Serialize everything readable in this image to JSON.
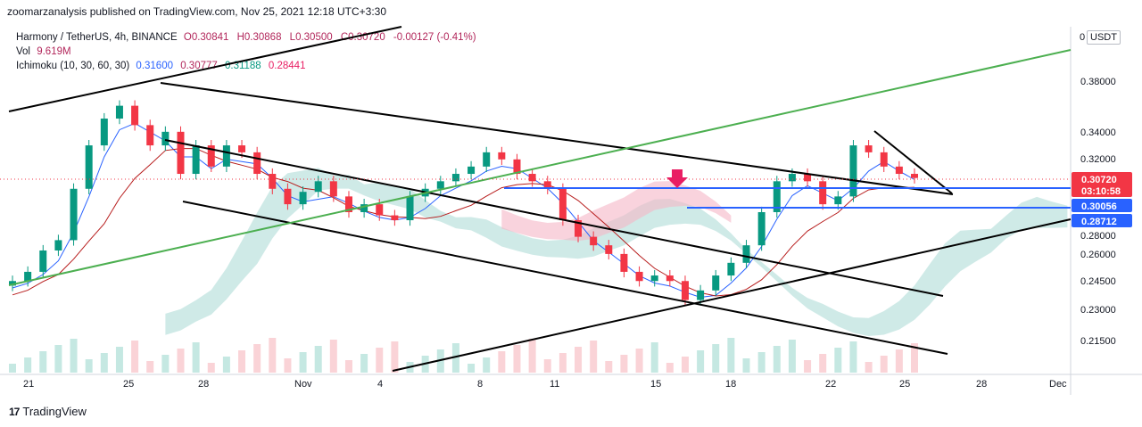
{
  "header": {
    "published": "zoomarzanalysis published on TradingView.com, Nov 25, 2021 12:18 UTC+3:30"
  },
  "legend": {
    "symbol": "Harmony / TetherUS, 4h, BINANCE",
    "o": "O0.30841",
    "h": "H0.30868",
    "l": "L0.30500",
    "c": "C0.30720",
    "change": "-0.00127 (-0.41%)",
    "vol_label": "Vol",
    "vol_value": "9.619M",
    "ichimoku_label": "Ichimoku (10, 30, 60, 30)",
    "ichi_conversion": "0.31600",
    "ichi_base": "0.30777",
    "ichi_span_a": "0.31188",
    "ichi_span_b": "0.28441"
  },
  "currency_button": "USDT",
  "footer": {
    "logo_mark": "17",
    "brand": "TradingView"
  },
  "colors": {
    "up": "#089981",
    "down": "#f23645",
    "conversion": "#2962ff",
    "base": "#b71c1c",
    "cloud_bull": "#a7d9d3",
    "cloud_bear": "#f5b5c7",
    "trend_green": "#4caf50",
    "hline": "#2962ff",
    "arrow": "#e91e63",
    "axis_text": "#131722"
  },
  "chart_data": {
    "type": "candlestick",
    "title": "Harmony / TetherUS, 4h, BINANCE",
    "y_axis_ticks": [
      "0.38000",
      "0.34000",
      "0.32000",
      "0.28000",
      "0.26000",
      "0.24500",
      "0.23000",
      "0.21500"
    ],
    "x_axis_ticks": [
      "21",
      "25",
      "28",
      "Nov",
      "4",
      "8",
      "11",
      "15",
      "18",
      "22",
      "25",
      "28",
      "Dec"
    ],
    "ylim": [
      0.205,
      0.41
    ],
    "y_scale": "log",
    "grid": false,
    "price_tags": [
      {
        "label": "0.30720",
        "sub": "03:10:58",
        "color": "#f23645"
      },
      {
        "label": "0.30056",
        "color": "#2962ff"
      },
      {
        "label": "0.28712",
        "color": "#2962ff"
      }
    ],
    "horizontal_levels": [
      0.30056,
      0.28712
    ],
    "close_approx": [
      0.245,
      0.25,
      0.262,
      0.268,
      0.3,
      0.33,
      0.35,
      0.36,
      0.345,
      0.33,
      0.34,
      0.31,
      0.33,
      0.315,
      0.33,
      0.325,
      0.31,
      0.3,
      0.29,
      0.298,
      0.305,
      0.295,
      0.285,
      0.29,
      0.283,
      0.28,
      0.295,
      0.3,
      0.305,
      0.31,
      0.315,
      0.325,
      0.32,
      0.31,
      0.305,
      0.3,
      0.28,
      0.27,
      0.265,
      0.26,
      0.25,
      0.245,
      0.248,
      0.245,
      0.235,
      0.24,
      0.248,
      0.255,
      0.265,
      0.285,
      0.305,
      0.31,
      0.305,
      0.29,
      0.295,
      0.33,
      0.325,
      0.315,
      0.31,
      0.3072
    ]
  }
}
